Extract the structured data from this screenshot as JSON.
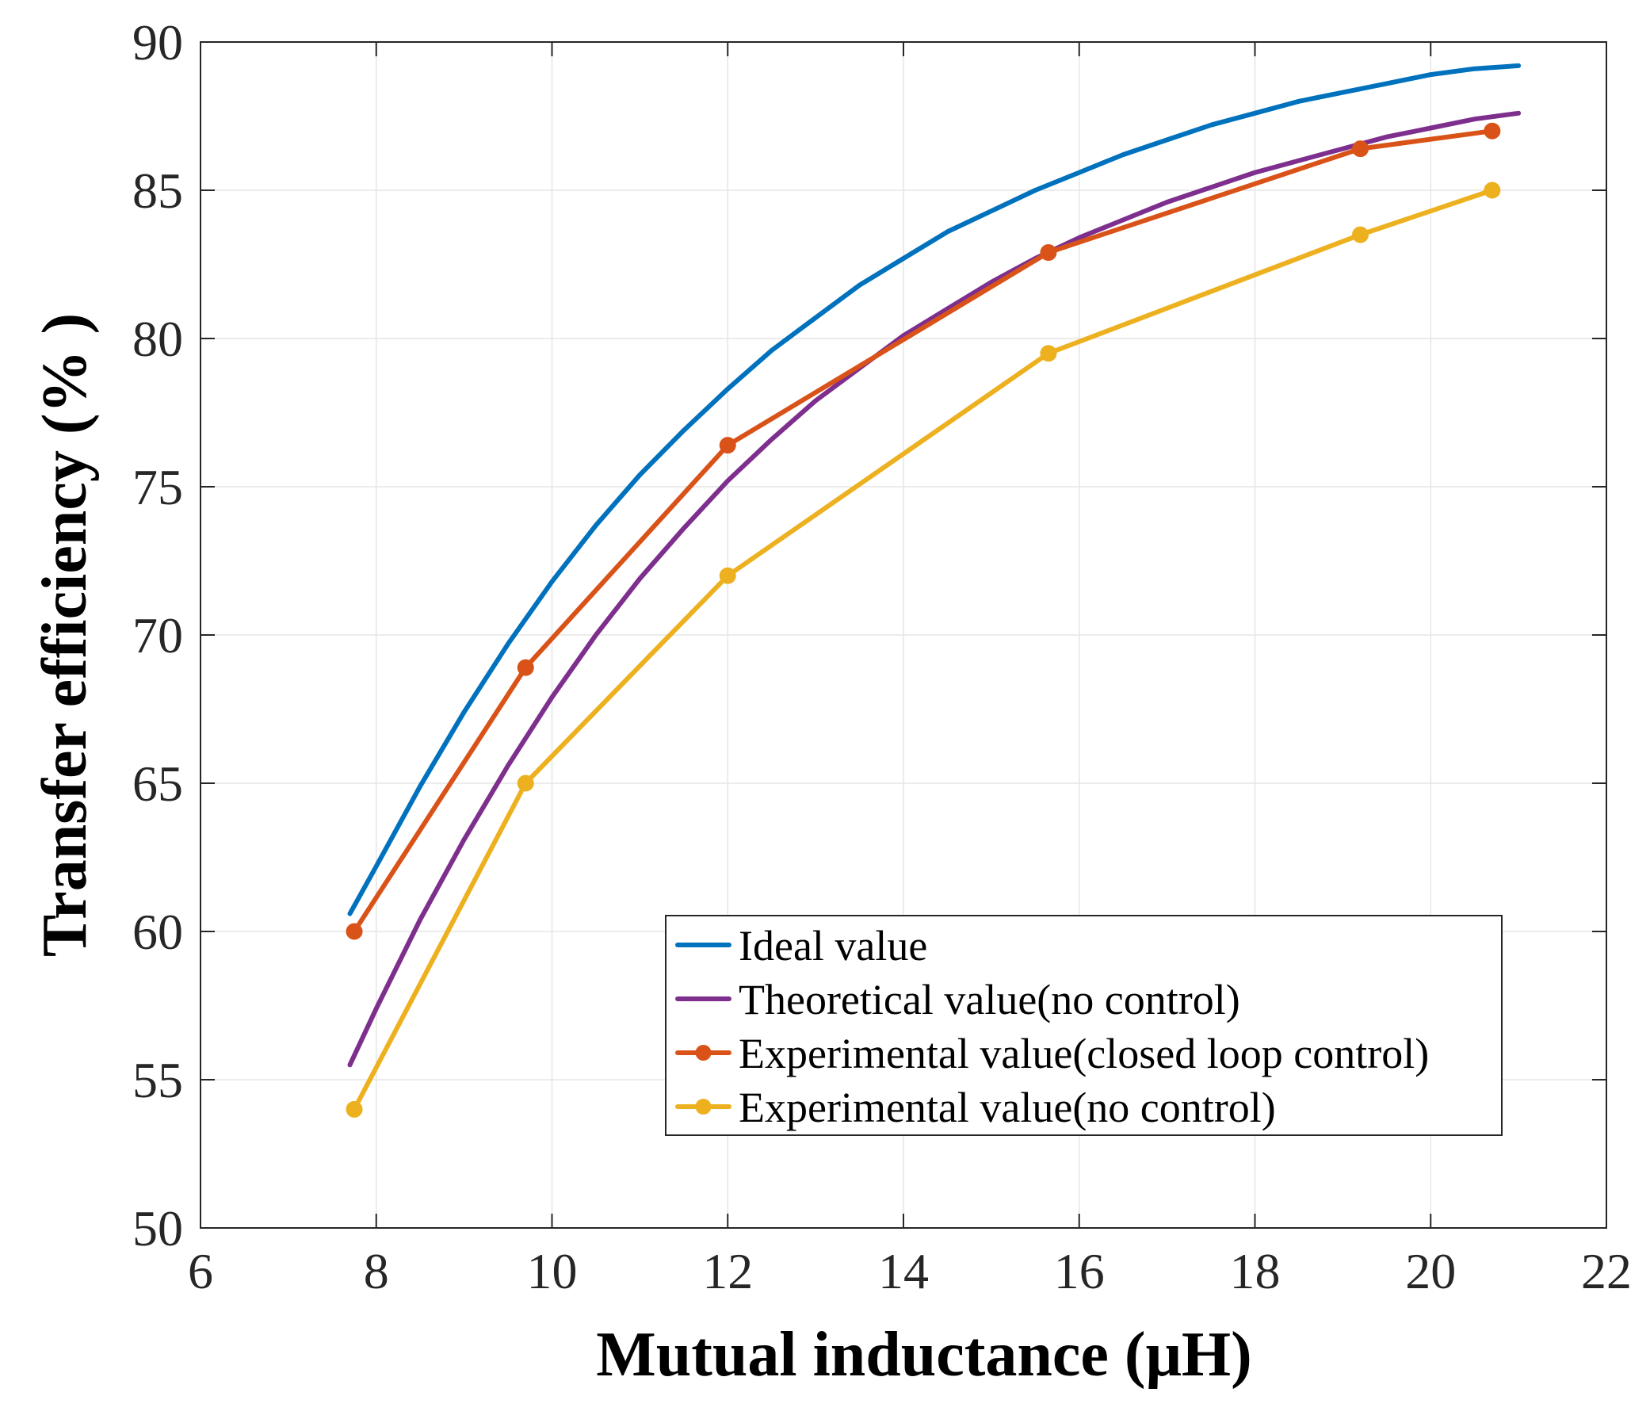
{
  "chart_data": {
    "type": "line",
    "xlabel": "Mutual inductance (μH)",
    "ylabel": "Transfer efficiency (% )",
    "xlim": [
      6,
      22
    ],
    "ylim": [
      50,
      90
    ],
    "xticks": [
      6,
      8,
      10,
      12,
      14,
      16,
      18,
      20,
      22
    ],
    "yticks": [
      50,
      55,
      60,
      65,
      70,
      75,
      80,
      85,
      90
    ],
    "grid": true,
    "legend_position": "bottom-right",
    "series": [
      {
        "name": "Ideal value",
        "color": "#0072BD",
        "markers": false,
        "x": [
          7.7,
          8.0,
          8.5,
          9.0,
          9.5,
          10.0,
          10.5,
          11.0,
          11.5,
          12.0,
          12.5,
          13.0,
          13.5,
          14.0,
          14.5,
          15.0,
          15.5,
          16.0,
          16.5,
          17.0,
          17.5,
          18.0,
          18.5,
          19.0,
          19.5,
          20.0,
          20.5,
          21.0
        ],
        "y": [
          60.6,
          62.2,
          64.9,
          67.4,
          69.7,
          71.8,
          73.7,
          75.4,
          76.9,
          78.3,
          79.6,
          80.7,
          81.8,
          82.7,
          83.6,
          84.3,
          85.0,
          85.6,
          86.2,
          86.7,
          87.2,
          87.6,
          88.0,
          88.3,
          88.6,
          88.9,
          89.1,
          89.2
        ]
      },
      {
        "name": "Theoretical value(no control)",
        "color": "#7E2F8E",
        "markers": false,
        "x": [
          7.7,
          8.0,
          8.5,
          9.0,
          9.5,
          10.0,
          10.5,
          11.0,
          11.5,
          12.0,
          12.5,
          13.0,
          13.5,
          14.0,
          14.5,
          15.0,
          15.5,
          16.0,
          16.5,
          17.0,
          17.5,
          18.0,
          18.5,
          19.0,
          19.5,
          20.0,
          20.5,
          21.0
        ],
        "y": [
          55.5,
          57.4,
          60.4,
          63.1,
          65.6,
          67.9,
          70.0,
          71.9,
          73.6,
          75.2,
          76.6,
          77.9,
          79.0,
          80.1,
          81.0,
          81.9,
          82.7,
          83.4,
          84.0,
          84.6,
          85.1,
          85.6,
          86.0,
          86.4,
          86.8,
          87.1,
          87.4,
          87.6
        ]
      },
      {
        "name": "Experimental value(closed loop control)",
        "color": "#D95319",
        "markers": true,
        "x": [
          7.75,
          9.7,
          12.0,
          15.65,
          19.2,
          20.7
        ],
        "y": [
          60.0,
          68.9,
          76.4,
          82.9,
          86.4,
          87.0
        ]
      },
      {
        "name": "Experimental value(no control)",
        "color": "#EDB120",
        "markers": true,
        "x": [
          7.75,
          9.7,
          12.0,
          15.65,
          19.2,
          20.7
        ],
        "y": [
          54.0,
          65.0,
          72.0,
          79.5,
          83.5,
          85.0
        ]
      }
    ]
  }
}
